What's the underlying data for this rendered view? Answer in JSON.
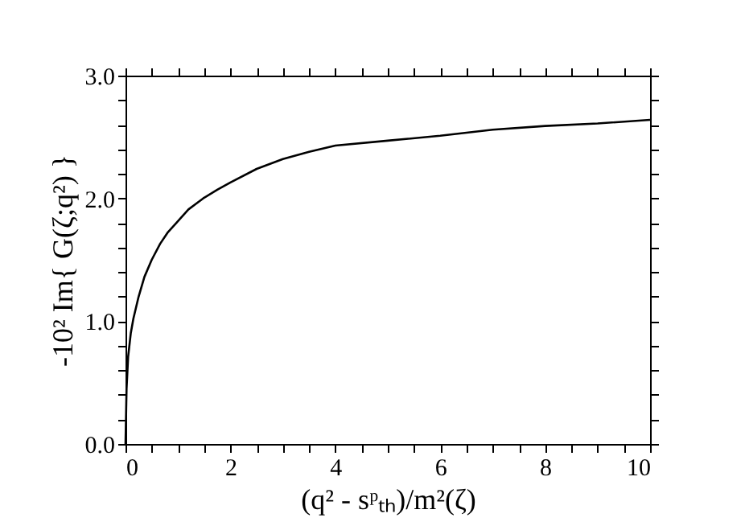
{
  "chart_data": {
    "type": "line",
    "xlabel": "(q² - sᵖₜₕ)/m²(ζ)",
    "ylabel": "-10² Im{ G(ζ;q²) }",
    "x": [
      0,
      0.02,
      0.05,
      0.1,
      0.15,
      0.25,
      0.36,
      0.5,
      0.66,
      0.8,
      0.97,
      1.2,
      1.48,
      1.75,
      2.0,
      2.5,
      3.0,
      3.5,
      4.0,
      5.0,
      6.0,
      7.0,
      8.0,
      9.0,
      10.0
    ],
    "series": [
      {
        "color": "#000000",
        "values": [
          0,
          0.45,
          0.71,
          0.9,
          1.02,
          1.2,
          1.36,
          1.5,
          1.63,
          1.72,
          1.8,
          1.91,
          2.0,
          2.07,
          2.13,
          2.24,
          2.32,
          2.38,
          2.43,
          2.47,
          2.51,
          2.56,
          2.59,
          2.61,
          2.64
        ]
      }
    ],
    "xlim": [
      0,
      10
    ],
    "ylim": [
      0,
      3
    ],
    "xticks": [
      0,
      {
        "value": 0.5,
        "label": null
      },
      {
        "value": 1,
        "label": null
      },
      {
        "value": 1.5,
        "label": null
      },
      2,
      {
        "value": 2.5,
        "label": null
      },
      {
        "value": 3,
        "label": null
      },
      {
        "value": 3.5,
        "label": null
      },
      4,
      {
        "value": 4.5,
        "label": null
      },
      {
        "value": 5,
        "label": null
      },
      {
        "value": 5.5,
        "label": null
      },
      6,
      {
        "value": 6.5,
        "label": null
      },
      {
        "value": 7,
        "label": null
      },
      {
        "value": 7.5,
        "label": null
      },
      8,
      {
        "value": 8.5,
        "label": null
      },
      {
        "value": 9,
        "label": null
      },
      {
        "value": 9.5,
        "label": null
      },
      10
    ],
    "yticks": [
      {
        "value": 0,
        "label": "0.0"
      },
      {
        "value": 0.2,
        "label": null
      },
      {
        "value": 0.4,
        "label": null
      },
      {
        "value": 0.6,
        "label": null
      },
      {
        "value": 0.8,
        "label": null
      },
      {
        "value": 1,
        "label": "1.0"
      },
      {
        "value": 1.2,
        "label": null
      },
      {
        "value": 1.4,
        "label": null
      },
      {
        "value": 1.6,
        "label": null
      },
      {
        "value": 1.8,
        "label": null
      },
      {
        "value": 2,
        "label": "2.0"
      },
      {
        "value": 2.2,
        "label": null
      },
      {
        "value": 2.4,
        "label": null
      },
      {
        "value": 2.6,
        "label": null
      },
      {
        "value": 2.8,
        "label": null
      },
      {
        "value": 3,
        "label": "3.0"
      }
    ],
    "grid": false,
    "marker": "none",
    "line_style": "solid"
  }
}
